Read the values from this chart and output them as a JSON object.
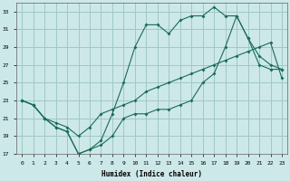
{
  "xlabel": "Humidex (Indice chaleur)",
  "bg_color": "#cde8e8",
  "grid_color": "#a0c8c8",
  "line_color": "#1a6b5a",
  "ylim": [
    17,
    34
  ],
  "xlim": [
    -0.5,
    23.5
  ],
  "yticks": [
    17,
    19,
    21,
    23,
    25,
    27,
    29,
    31,
    33
  ],
  "xticks": [
    0,
    1,
    2,
    3,
    4,
    5,
    6,
    7,
    8,
    9,
    10,
    11,
    12,
    13,
    14,
    15,
    16,
    17,
    18,
    19,
    20,
    21,
    22,
    23
  ],
  "line1_x": [
    0,
    1,
    2,
    3,
    4,
    5,
    6,
    7,
    8,
    9,
    10,
    11,
    12,
    13,
    14,
    15,
    16,
    17,
    18,
    19,
    20,
    21,
    22,
    23
  ],
  "line1_y": [
    23,
    22.5,
    21,
    20,
    19.5,
    17,
    17.5,
    18,
    19,
    21,
    21.5,
    21.5,
    22,
    22,
    22.5,
    23,
    25,
    26,
    29,
    32.5,
    30,
    27,
    26.5,
    26.5
  ],
  "line2_x": [
    0,
    1,
    2,
    3,
    4,
    5,
    6,
    7,
    8,
    9,
    10,
    11,
    12,
    13,
    14,
    15,
    16,
    17,
    18,
    19,
    20,
    21,
    22,
    23
  ],
  "line2_y": [
    23,
    22.5,
    21,
    20,
    19.5,
    17,
    17.5,
    18.5,
    21.5,
    25,
    29,
    31.5,
    31.5,
    30.5,
    32,
    32.5,
    32.5,
    33.5,
    32.5,
    32.5,
    30,
    28,
    27,
    26.5
  ],
  "line3_x": [
    0,
    1,
    2,
    3,
    4,
    5,
    6,
    7,
    8,
    9,
    10,
    11,
    12,
    13,
    14,
    15,
    16,
    17,
    18,
    19,
    20,
    21,
    22,
    23
  ],
  "line3_y": [
    23,
    22.5,
    21,
    20.5,
    20,
    19,
    20,
    21.5,
    22,
    22.5,
    23,
    24,
    24.5,
    25,
    25.5,
    26,
    26.5,
    27,
    27.5,
    28,
    28.5,
    29,
    29.5,
    25.5
  ]
}
